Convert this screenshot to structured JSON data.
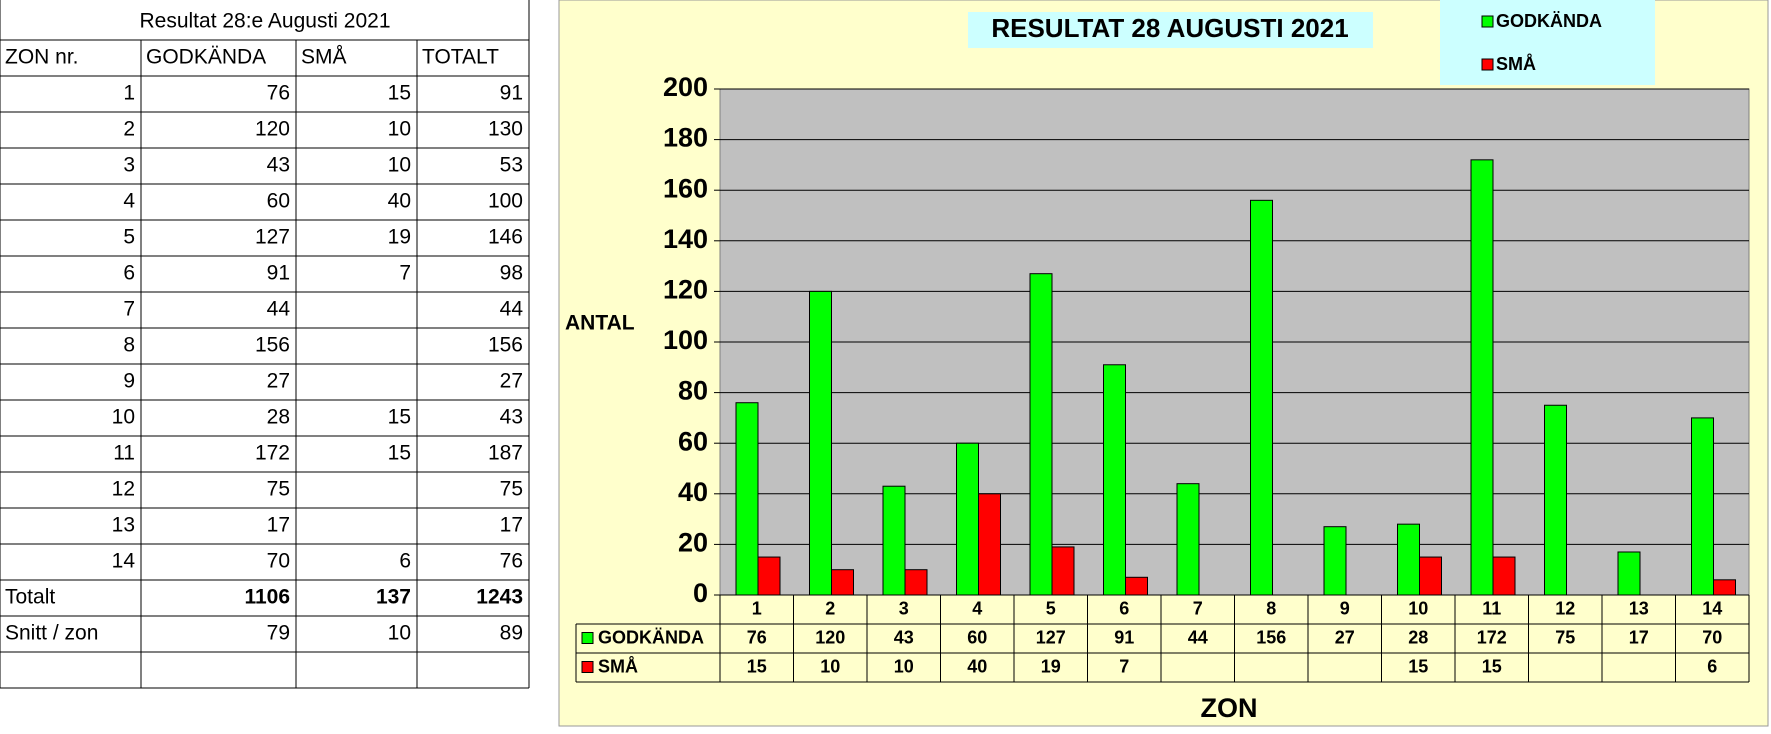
{
  "table": {
    "title": "Resultat 28:e Augusti 2021",
    "columns": [
      "ZON nr.",
      "GODKÄNDA",
      "SMÅ",
      "TOTALT"
    ],
    "rows": [
      [
        1,
        76,
        15,
        91
      ],
      [
        2,
        120,
        10,
        130
      ],
      [
        3,
        43,
        10,
        53
      ],
      [
        4,
        60,
        40,
        100
      ],
      [
        5,
        127,
        19,
        146
      ],
      [
        6,
        91,
        7,
        98
      ],
      [
        7,
        44,
        null,
        44
      ],
      [
        8,
        156,
        null,
        156
      ],
      [
        9,
        27,
        null,
        27
      ],
      [
        10,
        28,
        15,
        43
      ],
      [
        11,
        172,
        15,
        187
      ],
      [
        12,
        75,
        null,
        75
      ],
      [
        13,
        17,
        null,
        17
      ],
      [
        14,
        70,
        6,
        76
      ]
    ],
    "total": [
      "Totalt",
      1106,
      137,
      1243
    ],
    "average": [
      "Snitt / zon",
      79,
      10,
      89
    ]
  },
  "chart_data": {
    "type": "bar",
    "title": "RESULTAT 28 AUGUSTI 2021",
    "x_label": "ZON",
    "y_label": "ANTAL",
    "categories": [
      1,
      2,
      3,
      4,
      5,
      6,
      7,
      8,
      9,
      10,
      11,
      12,
      13,
      14
    ],
    "series": [
      {
        "name": "GODKÄNDA",
        "color": "#00ff00",
        "values": [
          76,
          120,
          43,
          60,
          127,
          91,
          44,
          156,
          27,
          28,
          172,
          75,
          17,
          70
        ]
      },
      {
        "name": "SMÅ",
        "color": "#ff0000",
        "values": [
          15,
          10,
          10,
          40,
          19,
          7,
          null,
          null,
          null,
          15,
          15,
          null,
          null,
          6
        ]
      }
    ],
    "ylim": [
      0,
      200
    ],
    "yticks": [
      0,
      20,
      40,
      60,
      80,
      100,
      120,
      140,
      160,
      180,
      200
    ],
    "grid": true,
    "data_table": true,
    "legend": "top-right"
  }
}
